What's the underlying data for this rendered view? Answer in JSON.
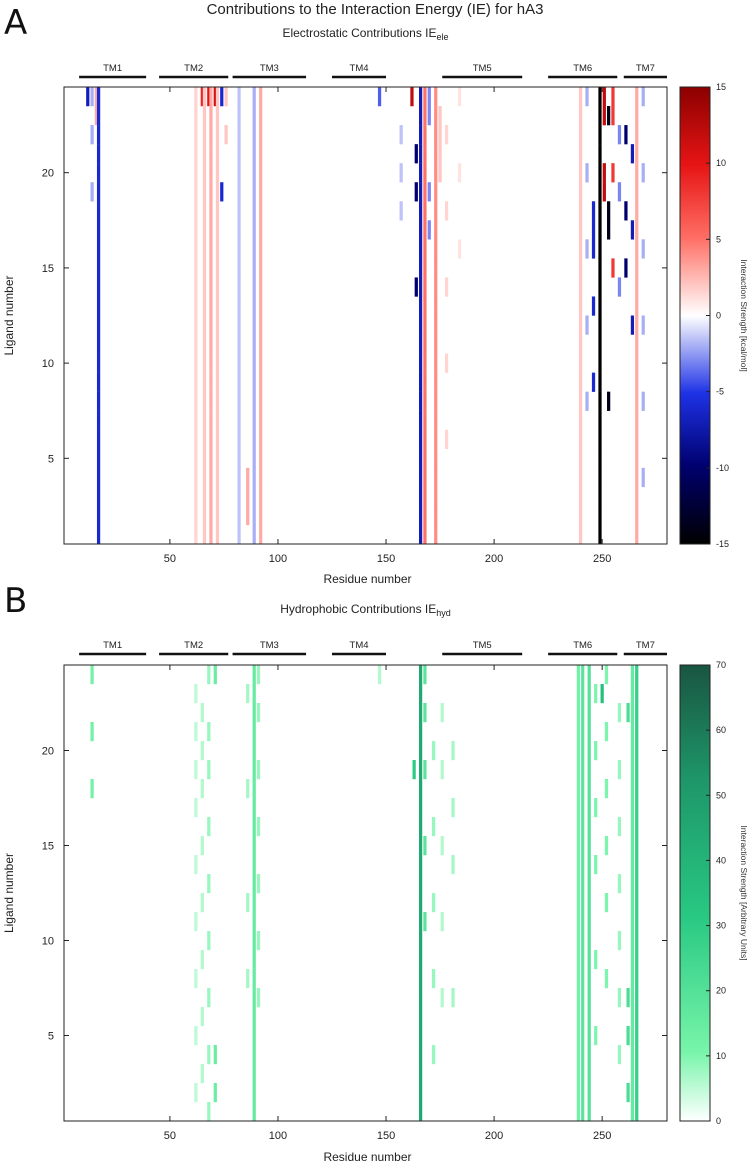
{
  "figure": {
    "title": "Contributions to the Interaction Energy (IE) for hA3"
  },
  "chart_data": [
    {
      "type": "heatmap",
      "panel_label": "A",
      "title": "Electrostatic Contributions IE",
      "title_subscript": "ele",
      "xlabel": "Residue number",
      "ylabel": "Ligand number",
      "xlim": [
        1,
        280
      ],
      "ylim": [
        0.5,
        24.5
      ],
      "xticks": [
        50,
        100,
        150,
        200,
        250
      ],
      "yticks": [
        5,
        10,
        15,
        20
      ],
      "colorbar": {
        "label": "Interaction Strength [kcal/mol]",
        "range": [
          -15,
          15
        ],
        "ticks": [
          15,
          10,
          5,
          0,
          -5,
          -10,
          -15
        ],
        "colormap": "black-blue-white-red-dark red"
      },
      "helices": [
        {
          "name": "TM1",
          "start": 8,
          "end": 39
        },
        {
          "name": "TM2",
          "start": 45,
          "end": 77
        },
        {
          "name": "TM3",
          "start": 79,
          "end": 113
        },
        {
          "name": "TM4",
          "start": 125,
          "end": 150
        },
        {
          "name": "TM5",
          "start": 176,
          "end": 213
        },
        {
          "name": "TM6",
          "start": 225,
          "end": 257
        },
        {
          "name": "TM7",
          "start": 260,
          "end": 280
        }
      ],
      "columns": [
        {
          "residue": 12,
          "value": -7,
          "rows": [
            24
          ]
        },
        {
          "residue": 14,
          "value": -2,
          "rows": [
            24,
            22,
            19
          ]
        },
        {
          "residue": 16,
          "value": 3,
          "rows": [
            24,
            23
          ]
        },
        {
          "residue": 17,
          "value": -6,
          "rows": "all"
        },
        {
          "residue": 62,
          "value": 1.5,
          "rows": "all"
        },
        {
          "residue": 65,
          "value": 9,
          "rows": [
            24
          ]
        },
        {
          "residue": 66,
          "value": 2,
          "rows": "all"
        },
        {
          "residue": 68,
          "value": 10,
          "rows": [
            24
          ]
        },
        {
          "residue": 69,
          "value": 3,
          "rows": "all"
        },
        {
          "residue": 71,
          "value": 11,
          "rows": [
            24
          ]
        },
        {
          "residue": 72,
          "value": 2,
          "rows": "all"
        },
        {
          "residue": 74,
          "value": -6,
          "rows": [
            24,
            19
          ]
        },
        {
          "residue": 76,
          "value": 2,
          "rows": [
            24,
            22
          ]
        },
        {
          "residue": 82,
          "value": -1.5,
          "rows": "all"
        },
        {
          "residue": 86,
          "value": 3,
          "rows": [
            4,
            3,
            2
          ]
        },
        {
          "residue": 89,
          "value": -2,
          "rows": "all"
        },
        {
          "residue": 92,
          "value": 3,
          "rows": "all"
        },
        {
          "residue": 147,
          "value": -4,
          "rows": [
            24
          ]
        },
        {
          "residue": 157,
          "value": -1.5,
          "rows": [
            18,
            20,
            22
          ]
        },
        {
          "residue": 162,
          "value": 12,
          "rows": [
            24
          ]
        },
        {
          "residue": 164,
          "value": -10,
          "rows": [
            21,
            19,
            14
          ]
        },
        {
          "residue": 166,
          "value": -7,
          "rows": "all"
        },
        {
          "residue": 168,
          "value": 5,
          "rows": "all"
        },
        {
          "residue": 170,
          "value": -3,
          "rows": [
            24,
            23,
            19,
            17
          ]
        },
        {
          "residue": 173,
          "value": 4,
          "rows": "all"
        },
        {
          "residue": 175,
          "value": 2,
          "rows": [
            23,
            22,
            21,
            20
          ]
        },
        {
          "residue": 178,
          "value": 1.5,
          "rows": [
            22,
            18,
            14,
            10,
            6
          ]
        },
        {
          "residue": 184,
          "value": 1,
          "rows": [
            24,
            20,
            16
          ]
        },
        {
          "residue": 240,
          "value": 2,
          "rows": "all"
        },
        {
          "residue": 243,
          "value": -2,
          "rows": [
            24,
            20,
            16,
            12,
            8
          ]
        },
        {
          "residue": 246,
          "value": -6,
          "rows": [
            18,
            17,
            16,
            13,
            9
          ]
        },
        {
          "residue": 249,
          "value": -15,
          "rows": "all"
        },
        {
          "residue": 251,
          "value": 12,
          "rows": [
            24,
            23,
            20,
            19
          ]
        },
        {
          "residue": 253,
          "value": -14,
          "rows": [
            23,
            18,
            17,
            8
          ]
        },
        {
          "residue": 255,
          "value": 8,
          "rows": [
            24,
            23,
            20,
            15
          ]
        },
        {
          "residue": 258,
          "value": -3,
          "rows": [
            22,
            19,
            14
          ]
        },
        {
          "residue": 261,
          "value": -10,
          "rows": [
            22,
            18,
            15
          ]
        },
        {
          "residue": 264,
          "value": -7,
          "rows": [
            21,
            17,
            12
          ]
        },
        {
          "residue": 266,
          "value": 3,
          "rows": "all"
        },
        {
          "residue": 269,
          "value": -2,
          "rows": [
            24,
            20,
            16,
            12,
            8,
            4
          ]
        }
      ]
    },
    {
      "type": "heatmap",
      "panel_label": "B",
      "title": "Hydrophobic Contributions IE",
      "title_subscript": "hyd",
      "xlabel": "Residue number",
      "ylabel": "Ligand number",
      "xlim": [
        1,
        280
      ],
      "ylim": [
        0.5,
        24.5
      ],
      "xticks": [
        50,
        100,
        150,
        200,
        250
      ],
      "yticks": [
        5,
        10,
        15,
        20
      ],
      "colorbar": {
        "label": "Interaction Strength [Arbitrary Units]",
        "range": [
          0,
          70
        ],
        "ticks": [
          70,
          60,
          50,
          40,
          30,
          20,
          10,
          0
        ],
        "colormap": "white-light green-dark green"
      },
      "helices": [
        {
          "name": "TM1",
          "start": 8,
          "end": 39
        },
        {
          "name": "TM2",
          "start": 45,
          "end": 77
        },
        {
          "name": "TM3",
          "start": 79,
          "end": 113
        },
        {
          "name": "TM4",
          "start": 125,
          "end": 150
        },
        {
          "name": "TM5",
          "start": 176,
          "end": 213
        },
        {
          "name": "TM6",
          "start": 225,
          "end": 257
        },
        {
          "name": "TM7",
          "start": 260,
          "end": 280
        }
      ],
      "columns": [
        {
          "residue": 14,
          "value": 12,
          "rows": [
            24,
            21,
            18
          ]
        },
        {
          "residue": 62,
          "value": 5,
          "rows": [
            23,
            21,
            19,
            17,
            14,
            11,
            8,
            5,
            2
          ]
        },
        {
          "residue": 65,
          "value": 6,
          "rows": [
            22,
            20,
            18,
            15,
            12,
            9,
            6,
            3
          ]
        },
        {
          "residue": 68,
          "value": 8,
          "rows": [
            24,
            21,
            19,
            16,
            13,
            10,
            7,
            4,
            1
          ]
        },
        {
          "residue": 71,
          "value": 14,
          "rows": [
            24,
            4,
            2
          ]
        },
        {
          "residue": 86,
          "value": 7,
          "rows": [
            23,
            18,
            12,
            8
          ]
        },
        {
          "residue": 89,
          "value": 15,
          "rows": "all"
        },
        {
          "residue": 91,
          "value": 8,
          "rows": [
            24,
            22,
            19,
            16,
            13,
            10,
            7
          ]
        },
        {
          "residue": 147,
          "value": 6,
          "rows": [
            24
          ]
        },
        {
          "residue": 163,
          "value": 30,
          "rows": [
            19
          ]
        },
        {
          "residue": 166,
          "value": 45,
          "rows": "all"
        },
        {
          "residue": 168,
          "value": 18,
          "rows": [
            24,
            22,
            19,
            15,
            11
          ]
        },
        {
          "residue": 172,
          "value": 8,
          "rows": [
            20,
            16,
            12,
            8,
            4
          ]
        },
        {
          "residue": 176,
          "value": 6,
          "rows": [
            22,
            19,
            15,
            11,
            7
          ]
        },
        {
          "residue": 181,
          "value": 7,
          "rows": [
            20,
            17,
            14,
            7
          ]
        },
        {
          "residue": 239,
          "value": 12,
          "rows": "all"
        },
        {
          "residue": 241,
          "value": 18,
          "rows": "all"
        },
        {
          "residue": 244,
          "value": 20,
          "rows": "all"
        },
        {
          "residue": 247,
          "value": 10,
          "rows": [
            23,
            20,
            17,
            14,
            9,
            5
          ]
        },
        {
          "residue": 250,
          "value": 35,
          "rows": [
            23
          ]
        },
        {
          "residue": 252,
          "value": 10,
          "rows": [
            24,
            21,
            18,
            15,
            12,
            8
          ]
        },
        {
          "residue": 258,
          "value": 8,
          "rows": [
            22,
            19,
            16,
            13,
            10,
            7,
            4
          ]
        },
        {
          "residue": 262,
          "value": 22,
          "rows": [
            22,
            7,
            5,
            2
          ]
        },
        {
          "residue": 264,
          "value": 15,
          "rows": "all"
        },
        {
          "residue": 266,
          "value": 28,
          "rows": "all"
        }
      ]
    }
  ]
}
